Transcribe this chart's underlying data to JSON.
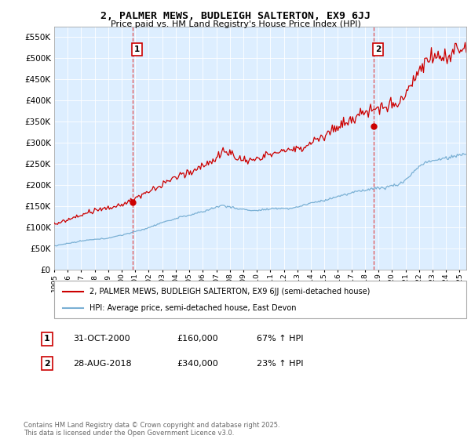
{
  "title": "2, PALMER MEWS, BUDLEIGH SALTERTON, EX9 6JJ",
  "subtitle": "Price paid vs. HM Land Registry's House Price Index (HPI)",
  "ylabel_ticks": [
    0,
    50000,
    100000,
    150000,
    200000,
    250000,
    300000,
    350000,
    400000,
    450000,
    500000,
    550000
  ],
  "ylim": [
    0,
    575000
  ],
  "xlim_start": 1995.0,
  "xlim_end": 2025.5,
  "sale1_x": 2000.83,
  "sale1_y": 160000,
  "sale1_label": "1",
  "sale1_date": "31-OCT-2000",
  "sale1_price": "£160,000",
  "sale1_hpi": "67% ↑ HPI",
  "sale2_x": 2018.65,
  "sale2_y": 340000,
  "sale2_label": "2",
  "sale2_date": "28-AUG-2018",
  "sale2_price": "£340,000",
  "sale2_hpi": "23% ↑ HPI",
  "line1_color": "#cc0000",
  "line2_color": "#7ab0d4",
  "plot_bg_color": "#ddeeff",
  "legend1": "2, PALMER MEWS, BUDLEIGH SALTERTON, EX9 6JJ (semi-detached house)",
  "legend2": "HPI: Average price, semi-detached house, East Devon",
  "footnote": "Contains HM Land Registry data © Crown copyright and database right 2025.\nThis data is licensed under the Open Government Licence v3.0.",
  "grid_color": "#ffffff"
}
